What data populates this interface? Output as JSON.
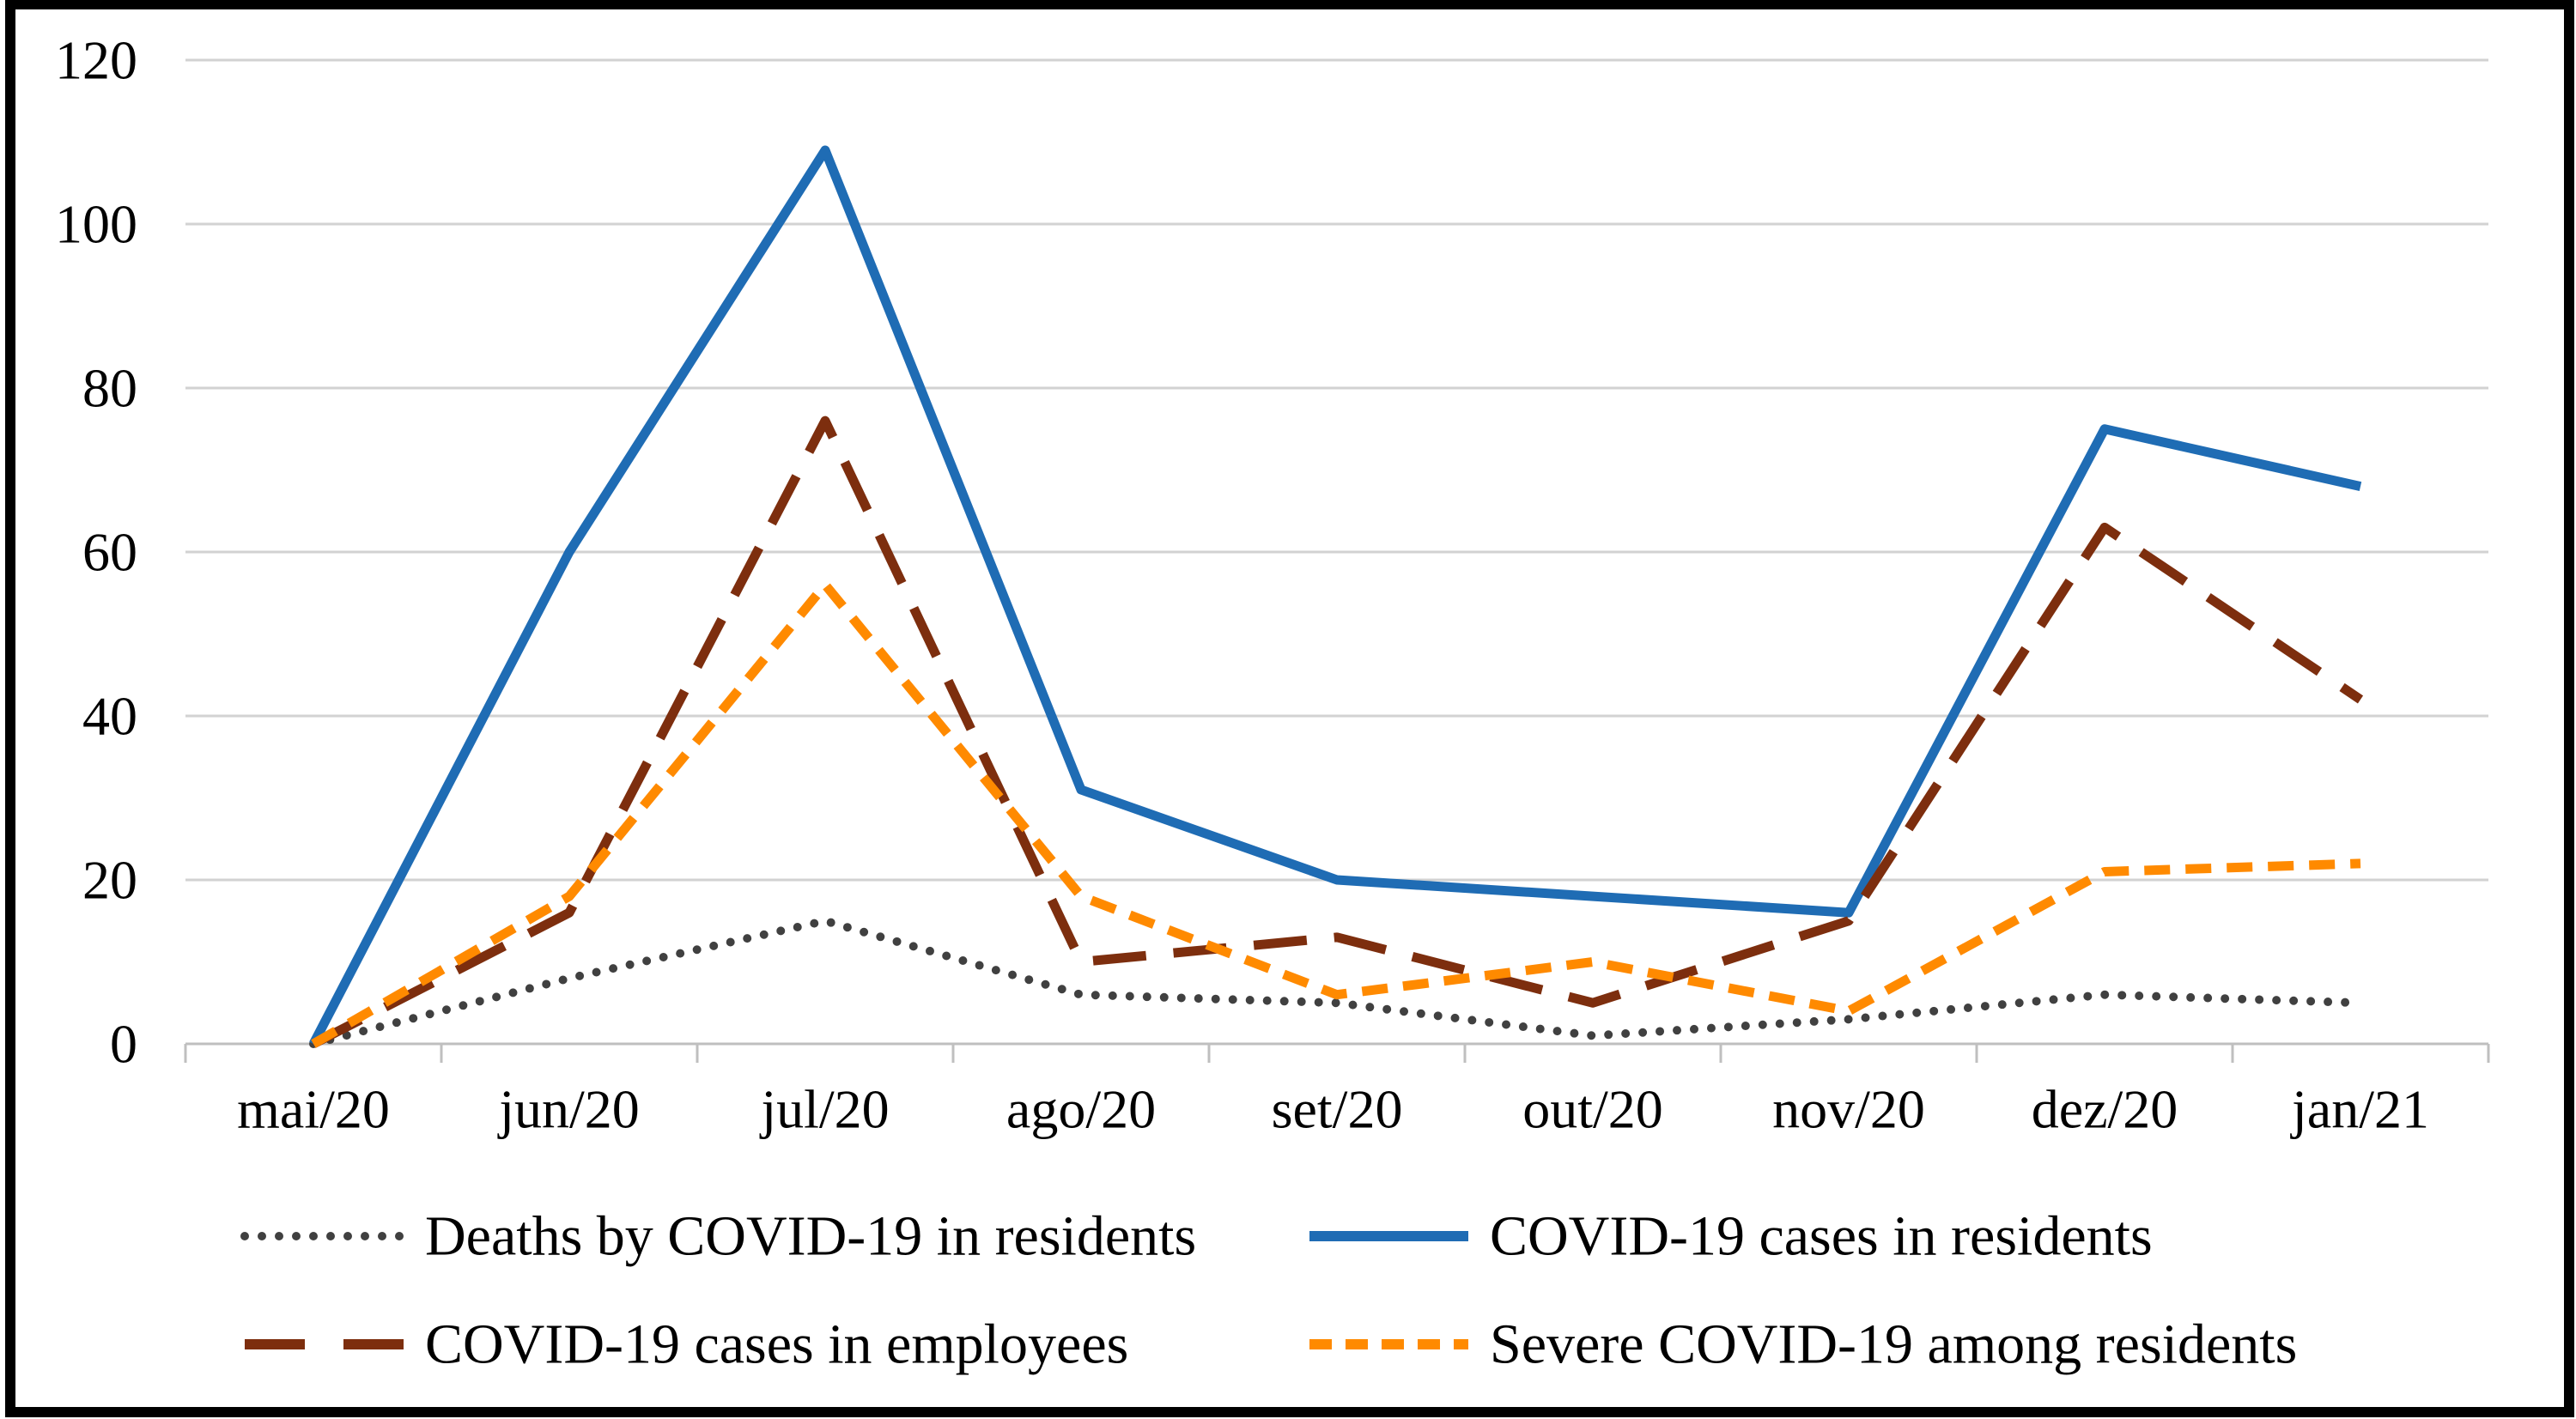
{
  "figure": {
    "background_color": "#ffffff",
    "border_color": "#000000"
  },
  "chart_data": {
    "type": "line",
    "title": "",
    "xlabel": "",
    "ylabel": "",
    "categories": [
      "mai/20",
      "jun/20",
      "jul/20",
      "ago/20",
      "set/20",
      "out/20",
      "nov/20",
      "dez/20",
      "jan/21"
    ],
    "y_axis": {
      "min": 0,
      "max": 120,
      "tick_step": 20,
      "ticks": [
        "0",
        "20",
        "40",
        "60",
        "80",
        "100",
        "120"
      ],
      "grid": true,
      "gridline_color": "#d2d2d2",
      "axis_color": "#bfbfbf"
    },
    "series": [
      {
        "slug": "deaths-residents",
        "name": "Deaths by COVID-19 in residents",
        "color": "#404040",
        "line_style": "dotted",
        "values": [
          0,
          8,
          15,
          6,
          5,
          1,
          3,
          6,
          5
        ]
      },
      {
        "slug": "cases-residents",
        "name": "COVID-19 cases in residents",
        "color": "#1f6cb4",
        "line_style": "solid",
        "values": [
          0,
          60,
          109,
          31,
          20,
          18,
          16,
          75,
          68
        ]
      },
      {
        "slug": "cases-employees",
        "name": "COVID-19 cases in employees",
        "color": "#7d2e0e",
        "line_style": "long-dash",
        "values": [
          0,
          16,
          76,
          10,
          13,
          5,
          15,
          63,
          42
        ]
      },
      {
        "slug": "severe-residents",
        "name": "Severe COVID-19 among residents",
        "color": "#ff8a00",
        "line_style": "dash",
        "values": [
          0,
          18,
          56,
          18,
          6,
          10,
          4,
          21,
          22
        ]
      }
    ],
    "legend": {
      "position": "bottom",
      "rows": [
        [
          "deaths-residents",
          "cases-residents"
        ],
        [
          "cases-employees",
          "severe-residents"
        ]
      ]
    }
  }
}
